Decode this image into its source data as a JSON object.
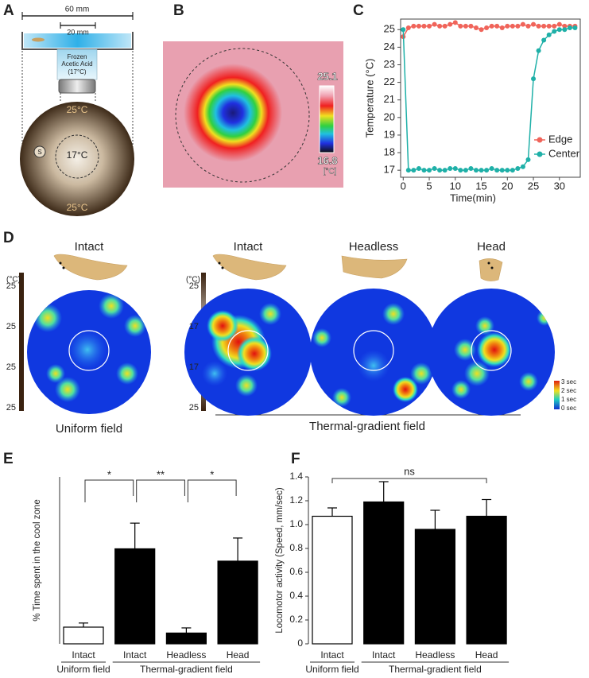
{
  "panel_labels": [
    "A",
    "B",
    "C",
    "D",
    "E",
    "F"
  ],
  "panel_a": {
    "width_outer": "60 mm",
    "width_inner": "20 mm",
    "source": [
      "Frozen",
      "Acetic Acid",
      "(17°C)"
    ],
    "edge_top": "25°C",
    "center": "17°C",
    "edge_bottom": "25°C",
    "start": "S"
  },
  "panel_b": {
    "scale_max": "25.1",
    "scale_min": "16.8",
    "unit": "[°C]"
  },
  "panel_d": {
    "headers": [
      "Intact",
      "Intact",
      "Headless",
      "Head"
    ],
    "unit_left": "(°C)",
    "scale_left": [
      "25",
      "25",
      "25",
      "25"
    ],
    "unit_right": "(°C)",
    "scale_right": [
      "25",
      "17",
      "17",
      "25"
    ],
    "groups": [
      "Uniform field",
      "Thermal-gradient field"
    ],
    "legend": [
      "3 sec",
      "2 sec",
      "1 sec",
      "0 sec"
    ]
  },
  "chart_data": [
    {
      "type": "line",
      "x_label": "Time(min)",
      "y_label": "Temperature (°C)",
      "x": [
        0,
        1,
        2,
        3,
        4,
        5,
        6,
        7,
        8,
        9,
        10,
        11,
        12,
        13,
        14,
        15,
        16,
        17,
        18,
        19,
        20,
        21,
        22,
        23,
        24,
        25,
        26,
        27,
        28,
        29,
        30,
        31,
        32,
        33
      ],
      "series": [
        {
          "name": "Edge",
          "color": "#f0645a",
          "values": [
            24.6,
            25.1,
            25.2,
            25.2,
            25.2,
            25.2,
            25.3,
            25.2,
            25.2,
            25.3,
            25.4,
            25.2,
            25.2,
            25.2,
            25.1,
            25.0,
            25.1,
            25.2,
            25.2,
            25.1,
            25.2,
            25.2,
            25.2,
            25.3,
            25.2,
            25.3,
            25.2,
            25.2,
            25.2,
            25.2,
            25.3,
            25.2,
            25.2,
            25.2
          ]
        },
        {
          "name": "Center",
          "color": "#1fb0a8",
          "values": [
            25.0,
            17.0,
            17.0,
            17.1,
            17.0,
            17.0,
            17.1,
            17.0,
            17.0,
            17.1,
            17.1,
            17.0,
            17.0,
            17.1,
            17.0,
            17.0,
            17.0,
            17.1,
            17.0,
            17.0,
            17.0,
            17.0,
            17.1,
            17.2,
            17.6,
            22.2,
            23.8,
            24.4,
            24.7,
            24.9,
            25.0,
            25.0,
            25.1,
            25.1
          ]
        }
      ],
      "xlim": [
        -0.5,
        34
      ],
      "ylim": [
        16.6,
        25.6
      ],
      "xticks": [
        0,
        5,
        10,
        15,
        20,
        25,
        30
      ],
      "yticks": [
        17,
        18,
        19,
        20,
        21,
        22,
        23,
        24,
        25
      ],
      "legend": "right"
    },
    {
      "type": "bar",
      "y_label": "% Time spent in the cool zone",
      "categories": [
        "Intact",
        "Intact",
        "Headless",
        "Head"
      ],
      "values": [
        6.5,
        37,
        4.2,
        32.2
      ],
      "errors": [
        1.6,
        10,
        2,
        9
      ],
      "colors": [
        "#ffffff",
        "#000000",
        "#000000",
        "#000000"
      ],
      "groups": [
        "Uniform field",
        "Thermal-gradient field"
      ],
      "significance": [
        "*",
        "**",
        "*"
      ],
      "ylim": [
        0,
        65
      ]
    },
    {
      "type": "bar",
      "y_label": "Locomotor activity (Speed, mm/sec)",
      "categories": [
        "Intact",
        "Intact",
        "Headless",
        "Head"
      ],
      "values": [
        1.07,
        1.19,
        0.96,
        1.07
      ],
      "errors": [
        0.07,
        0.17,
        0.16,
        0.14
      ],
      "colors": [
        "#ffffff",
        "#000000",
        "#000000",
        "#000000"
      ],
      "groups": [
        "Uniform field",
        "Thermal-gradient field"
      ],
      "significance": [
        "ns"
      ],
      "ylim": [
        0,
        1.4
      ],
      "yticks": [
        0,
        0.2,
        0.4,
        0.6,
        0.8,
        {
          "value": 1,
          "label": "1.0"
        },
        1.2,
        1.4
      ]
    }
  ]
}
